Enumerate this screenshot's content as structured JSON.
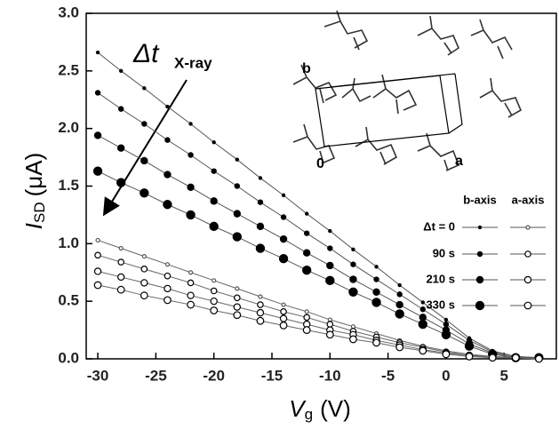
{
  "chart_data": {
    "type": "scatter-line",
    "x_label": "V",
    "x_label_sub": "g",
    "x_label_unit": "(V)",
    "y_label": "I",
    "y_label_sub": "SD",
    "y_label_unit": "(μA)",
    "annotation": "Δt",
    "annotation_sub": "X-ray",
    "inset_labels": [
      "b",
      "0",
      "a"
    ],
    "legend_columns": [
      "b-axis",
      "a-axis"
    ],
    "legend_rows": [
      "Δt = 0",
      "90 s",
      "210 s",
      "330 s"
    ],
    "xlim": [
      -31,
      9.5
    ],
    "ylim": [
      0,
      3
    ],
    "xticks": [
      -30,
      -25,
      -20,
      -15,
      -10,
      -5,
      0,
      5
    ],
    "yticks": [
      {
        "value": 0,
        "label": "0.0"
      },
      0.5,
      {
        "value": 1,
        "label": "1.0"
      },
      1.5,
      {
        "value": 2,
        "label": "2.0"
      },
      2.5,
      {
        "value": 3,
        "label": "3.0"
      }
    ],
    "x": [
      -30,
      -28,
      -26,
      -24,
      -22,
      -20,
      -18,
      -16,
      -14,
      -12,
      -10,
      -8,
      -6,
      -4,
      -2,
      0,
      2,
      4,
      6,
      8
    ],
    "series": [
      {
        "marker": "filled",
        "color": "#000000",
        "values": [
          2.66,
          2.5,
          2.35,
          2.19,
          2.04,
          1.88,
          1.73,
          1.57,
          1.42,
          1.26,
          1.11,
          0.95,
          0.8,
          0.64,
          0.49,
          0.34,
          0.18,
          0.07,
          0.02,
          0.01
        ]
      },
      {
        "marker": "filled",
        "color": "#000000",
        "values": [
          2.31,
          2.17,
          2.04,
          1.9,
          1.77,
          1.63,
          1.5,
          1.36,
          1.23,
          1.09,
          0.96,
          0.82,
          0.69,
          0.56,
          0.43,
          0.3,
          0.16,
          0.06,
          0.02,
          0.01
        ]
      },
      {
        "marker": "filled",
        "color": "#000000",
        "values": [
          1.94,
          1.83,
          1.72,
          1.6,
          1.49,
          1.37,
          1.26,
          1.15,
          1.04,
          0.92,
          0.81,
          0.69,
          0.58,
          0.47,
          0.36,
          0.25,
          0.13,
          0.05,
          0.01,
          0.01
        ]
      },
      {
        "marker": "filled",
        "color": "#000000",
        "values": [
          1.63,
          1.53,
          1.44,
          1.34,
          1.25,
          1.15,
          1.06,
          0.96,
          0.87,
          0.77,
          0.68,
          0.58,
          0.49,
          0.39,
          0.3,
          0.21,
          0.11,
          0.04,
          0.01,
          0.01
        ]
      },
      {
        "marker": "open",
        "color": "#555555",
        "values": [
          1.03,
          0.96,
          0.89,
          0.82,
          0.75,
          0.68,
          0.61,
          0.54,
          0.47,
          0.41,
          0.34,
          0.28,
          0.22,
          0.16,
          0.11,
          0.07,
          0.04,
          0.02,
          0.01,
          0.0
        ]
      },
      {
        "marker": "open",
        "color": "#000000",
        "values": [
          0.9,
          0.84,
          0.78,
          0.72,
          0.66,
          0.59,
          0.53,
          0.47,
          0.41,
          0.36,
          0.3,
          0.24,
          0.19,
          0.14,
          0.1,
          0.06,
          0.03,
          0.02,
          0.01,
          0.0
        ]
      },
      {
        "marker": "open",
        "color": "#000000",
        "values": [
          0.76,
          0.71,
          0.66,
          0.61,
          0.55,
          0.5,
          0.45,
          0.4,
          0.35,
          0.3,
          0.25,
          0.21,
          0.16,
          0.12,
          0.08,
          0.05,
          0.03,
          0.01,
          0.01,
          0.0
        ]
      },
      {
        "marker": "open",
        "color": "#000000",
        "values": [
          0.64,
          0.6,
          0.55,
          0.51,
          0.47,
          0.42,
          0.38,
          0.33,
          0.29,
          0.25,
          0.21,
          0.17,
          0.14,
          0.1,
          0.07,
          0.04,
          0.02,
          0.01,
          0.01,
          0.0
        ]
      }
    ]
  }
}
